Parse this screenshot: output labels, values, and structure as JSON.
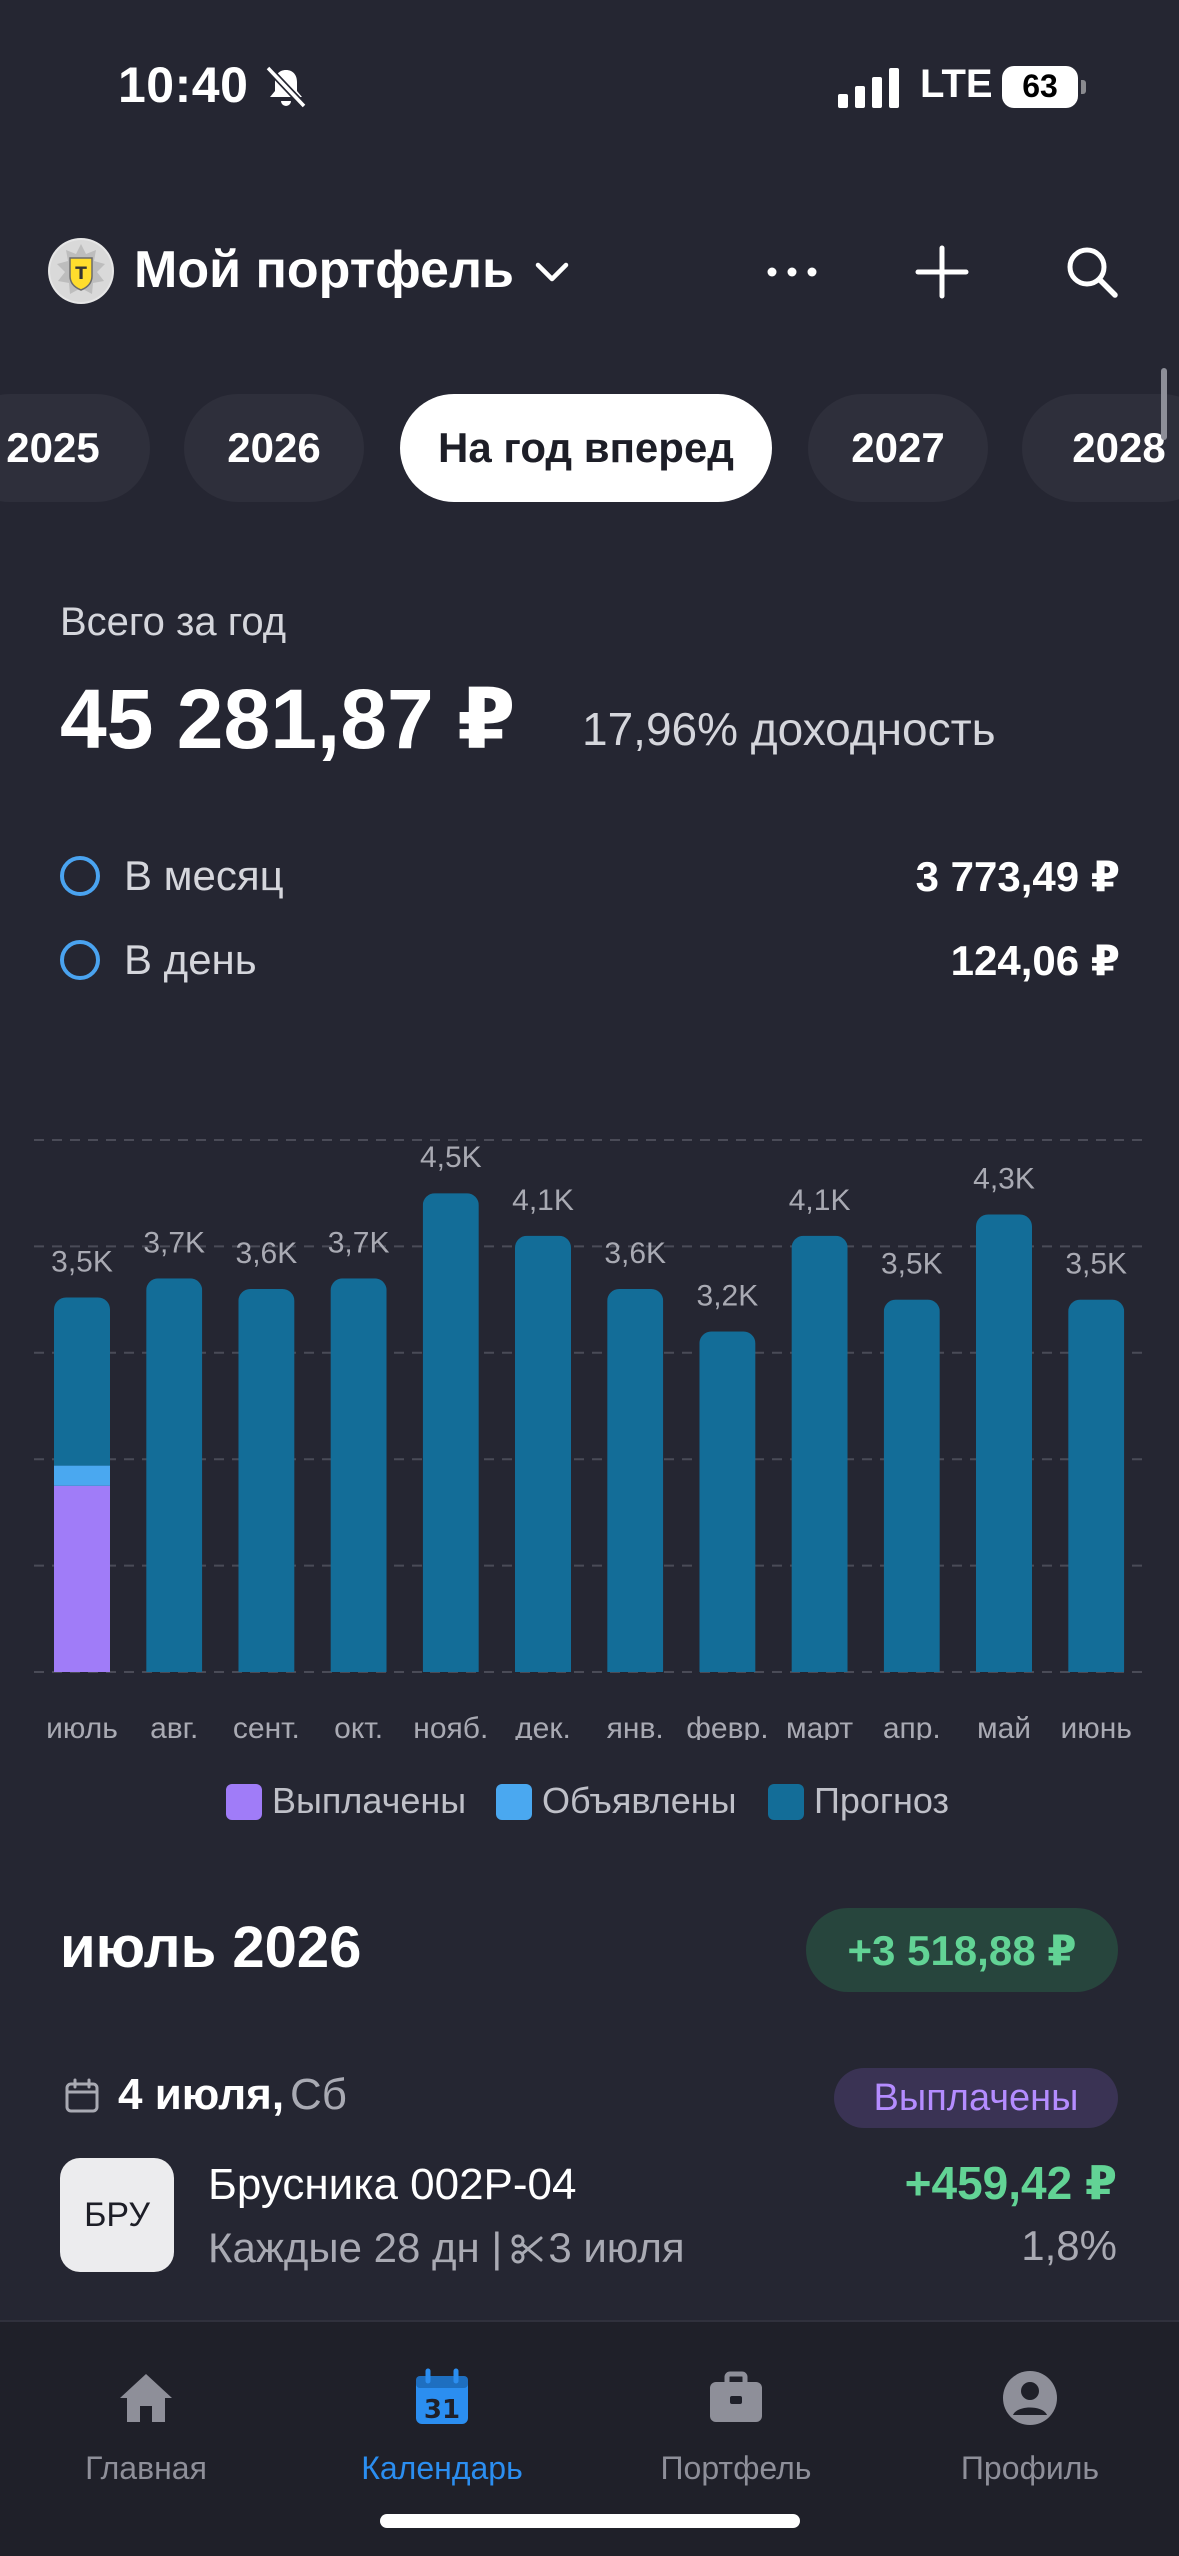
{
  "status_bar": {
    "time": "10:40",
    "network": "LTE",
    "battery": "63"
  },
  "header": {
    "title": "Мой портфель"
  },
  "tabs": [
    {
      "label": "2025",
      "active": false
    },
    {
      "label": "2026",
      "active": false
    },
    {
      "label": "На год вперед",
      "active": true
    },
    {
      "label": "2027",
      "active": false
    },
    {
      "label": "2028",
      "active": false
    }
  ],
  "summary": {
    "total_label": "Всего за год",
    "total_value": "45 281,87 ₽",
    "yield_text": "17,96% доходность",
    "monthly_label": "В месяц",
    "monthly_value": "3 773,49 ₽",
    "daily_label": "В день",
    "daily_value": "124,06 ₽"
  },
  "chart_data": {
    "type": "bar",
    "stacked": true,
    "categories": [
      "июль",
      "авг.",
      "сент.",
      "окт.",
      "нояб.",
      "дек.",
      "янв.",
      "февр.",
      "март",
      "апр.",
      "май",
      "июнь"
    ],
    "value_labels": [
      "3,5K",
      "3,7K",
      "3,6K",
      "3,7K",
      "4,5K",
      "4,1K",
      "3,6K",
      "3,2K",
      "4,1K",
      "3,5K",
      "4,3K",
      "3,5K"
    ],
    "series": [
      {
        "name": "Выплачены",
        "color": "#a07cf8",
        "values": [
          1750,
          0,
          0,
          0,
          0,
          0,
          0,
          0,
          0,
          0,
          0,
          0
        ]
      },
      {
        "name": "Объявлены",
        "color": "#4aa8f0",
        "values": [
          190,
          0,
          0,
          0,
          0,
          0,
          0,
          0,
          0,
          0,
          0,
          0
        ]
      },
      {
        "name": "Прогноз",
        "color": "#136d98",
        "values": [
          1580,
          3700,
          3600,
          3700,
          4500,
          4100,
          3600,
          3200,
          4100,
          3500,
          4300,
          3500
        ]
      }
    ],
    "ylim": [
      0,
      5000
    ],
    "grid": true,
    "legend": "bottom"
  },
  "month": {
    "title": "июль 2026",
    "total": "+3 518,88 ₽"
  },
  "payment_day": {
    "date": "4 июля,",
    "weekday": "Сб",
    "status": "Выплачены"
  },
  "payment": {
    "ticker": "БРУ",
    "name": "Брусника 002Р-04",
    "period": "Каждые 28 дн |",
    "record_date": "3 июля",
    "amount": "+459,42 ₽",
    "yield": "1,8%"
  },
  "nav": [
    {
      "label": "Главная",
      "icon": "home-icon",
      "active": false
    },
    {
      "label": "Календарь",
      "icon": "calendar-icon",
      "icon_text": "31",
      "active": true
    },
    {
      "label": "Портфель",
      "icon": "briefcase-icon",
      "active": false
    },
    {
      "label": "Профиль",
      "icon": "profile-icon",
      "active": false
    }
  ]
}
